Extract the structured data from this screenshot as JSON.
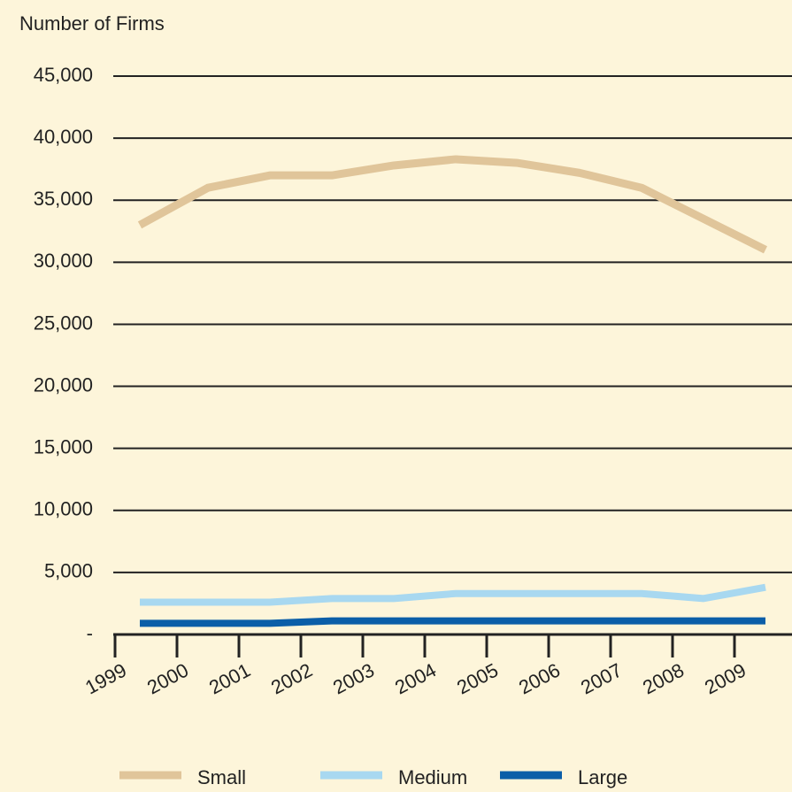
{
  "chart_data": {
    "type": "line",
    "ylabel": "Number of Firms",
    "categories": [
      "1999",
      "2000",
      "2001",
      "2002",
      "2003",
      "2004",
      "2005",
      "2006",
      "2007",
      "2008",
      "2009"
    ],
    "series": [
      {
        "name": "Small",
        "color": "#e0c59a",
        "values": [
          33000,
          36000,
          37000,
          37000,
          37800,
          38300,
          38000,
          37200,
          36000,
          33500,
          31000
        ]
      },
      {
        "name": "Medium",
        "color": "#a8d8f0",
        "values": [
          2600,
          2600,
          2600,
          2900,
          2900,
          3300,
          3300,
          3300,
          3300,
          2900,
          3800
        ]
      },
      {
        "name": "Large",
        "color": "#0b5ea8",
        "values": [
          900,
          900,
          900,
          1100,
          1100,
          1100,
          1100,
          1100,
          1100,
          1100,
          1100
        ]
      }
    ],
    "ylim": [
      0,
      45000
    ],
    "yticks": [
      {
        "value": 0,
        "label": "-"
      },
      {
        "value": 5000,
        "label": "5,000"
      },
      {
        "value": 10000,
        "label": "10,000"
      },
      {
        "value": 15000,
        "label": "15,000"
      },
      {
        "value": 20000,
        "label": "20,000"
      },
      {
        "value": 25000,
        "label": "25,000"
      },
      {
        "value": 30000,
        "label": "30,000"
      },
      {
        "value": 35000,
        "label": "35,000"
      },
      {
        "value": 40000,
        "label": "40,000"
      },
      {
        "value": 45000,
        "label": "45,000"
      }
    ],
    "grid": true,
    "legend": "bottom"
  }
}
